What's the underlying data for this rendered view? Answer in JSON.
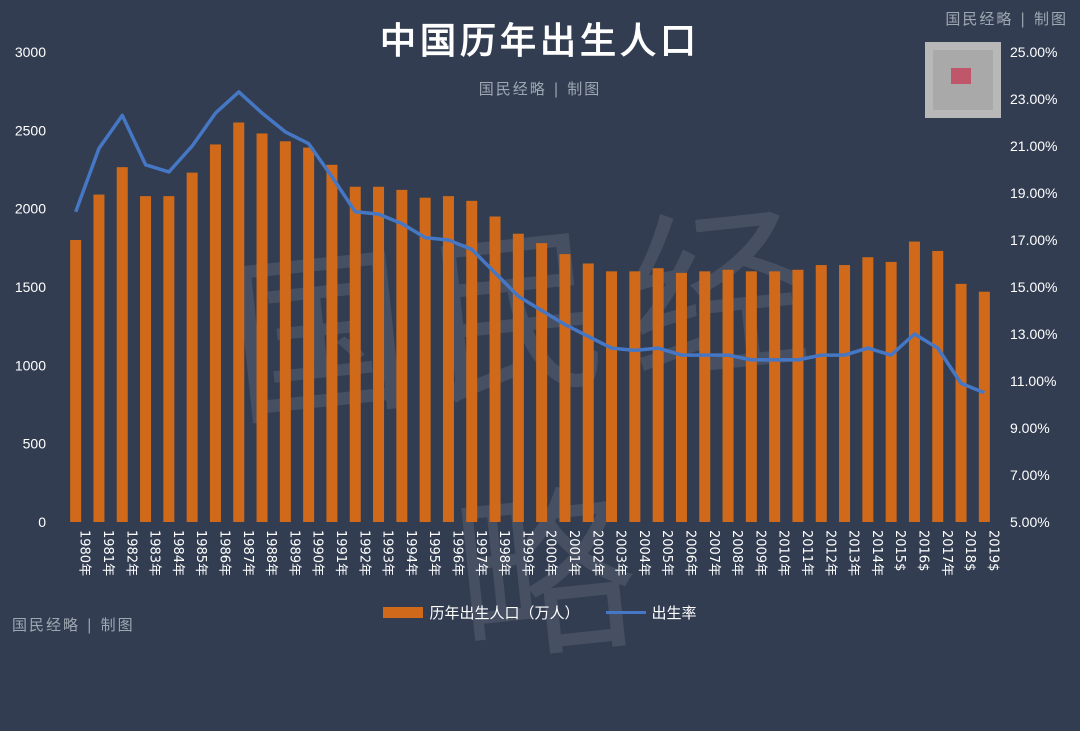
{
  "header": {
    "title": "中国历年出生人口",
    "subtitle": "国民经略 | 制图",
    "watermark_top_right": "国民经略 | 制图",
    "watermark_bottom_left": "国民经略 | 制图",
    "background_watermark": "国民经略"
  },
  "colors": {
    "background": "#323d51",
    "bar": "#d06a1a",
    "line": "#4577c5",
    "text": "#ffffff"
  },
  "chart_data": {
    "type": "bar",
    "title": "中国历年出生人口",
    "categories": [
      "1980年",
      "1981年",
      "1982年",
      "1983年",
      "1984年",
      "1985年",
      "1986年",
      "1987年",
      "1988年",
      "1989年",
      "1990年",
      "1991年",
      "1992年",
      "1993年",
      "1994年",
      "1995年",
      "1996年",
      "1997年",
      "1998年",
      "1999年",
      "2000年",
      "2001年",
      "2002年",
      "2003年",
      "2004年",
      "2005年",
      "2006年",
      "2007年",
      "2008年",
      "2009年",
      "2010年",
      "2011年",
      "2012年",
      "2013年",
      "2014年",
      "2015年",
      "2016年",
      "2017年",
      "2018年",
      "2019年"
    ],
    "category_labels_displayed": [
      "1980年",
      "1981年",
      "1982年",
      "1983年",
      "1984年",
      "1985年",
      "1986年",
      "1987年",
      "1988年",
      "1989年",
      "1990年",
      "1991年",
      "1992年",
      "1993年",
      "1994年",
      "1995年",
      "1996年",
      "1997年",
      "1998年",
      "1999年",
      "2000年",
      "2001年",
      "2002年",
      "2003年",
      "2004年",
      "2005年",
      "2006年",
      "2007年",
      "2008年",
      "2009年",
      "2010年",
      "2011年",
      "2012年",
      "2013年",
      "2014年",
      "2015$",
      "2016$",
      "2017年",
      "2018$",
      "2019$"
    ],
    "series": [
      {
        "name": "历年出生人口（万人）",
        "type": "bar",
        "axis": "left",
        "values": [
          1800,
          2090,
          2265,
          2080,
          2080,
          2230,
          2410,
          2550,
          2480,
          2430,
          2390,
          2280,
          2140,
          2140,
          2120,
          2070,
          2080,
          2050,
          1950,
          1840,
          1780,
          1710,
          1650,
          1600,
          1600,
          1620,
          1590,
          1600,
          1610,
          1600,
          1600,
          1610,
          1640,
          1640,
          1690,
          1660,
          1790,
          1730,
          1520,
          1470
        ]
      },
      {
        "name": "出生率",
        "type": "line",
        "axis": "right",
        "values": [
          18.2,
          20.9,
          22.3,
          20.2,
          19.9,
          21.0,
          22.4,
          23.3,
          22.4,
          21.6,
          21.1,
          19.7,
          18.2,
          18.1,
          17.7,
          17.1,
          17.0,
          16.6,
          15.6,
          14.6,
          14.0,
          13.4,
          12.9,
          12.4,
          12.3,
          12.4,
          12.1,
          12.1,
          12.1,
          11.9,
          11.9,
          11.9,
          12.1,
          12.1,
          12.4,
          12.1,
          13.0,
          12.4,
          10.9,
          10.5
        ]
      }
    ],
    "yAxisLeft": {
      "ylim": [
        0,
        3000
      ],
      "ticks": [
        0,
        500,
        1000,
        1500,
        2000,
        2500,
        3000
      ]
    },
    "yAxisRight": {
      "ylim": [
        5,
        25
      ],
      "ticks": [
        "5.00%",
        "7.00%",
        "9.00%",
        "11.00%",
        "13.00%",
        "15.00%",
        "17.00%",
        "19.00%",
        "21.00%",
        "23.00%",
        "25.00%"
      ]
    },
    "grid": false,
    "legend": "bottom"
  }
}
